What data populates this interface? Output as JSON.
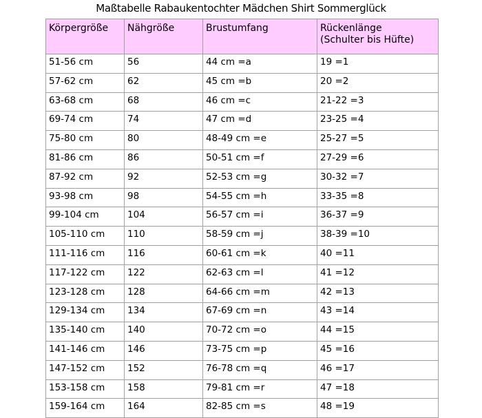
{
  "title": "Maßtabelle Rabaukentochter Mädchen Shirt Sommerglück",
  "header_color": "#ffccff",
  "headers": [
    "Körpergröße",
    "Nähgröße",
    "Brustumfang",
    "Rückenlänge\n(Schulter bis Hüfte)"
  ],
  "rows": [
    [
      "51-56 cm",
      "56",
      "44 cm =a",
      "19 =1"
    ],
    [
      "57-62 cm",
      "62",
      "45 cm =b",
      "20 =2"
    ],
    [
      "63-68 cm",
      "68",
      "46 cm =c",
      "21-22 =3"
    ],
    [
      "69-74 cm",
      "74",
      "47 cm =d",
      "23-25 =4"
    ],
    [
      "75-80 cm",
      "80",
      "48-49 cm =e",
      "25-27 =5"
    ],
    [
      "81-86 cm",
      "86",
      "50-51 cm =f",
      "27-29 =6"
    ],
    [
      "87-92 cm",
      "92",
      "52-53 cm =g",
      "30-32 =7"
    ],
    [
      "93-98 cm",
      "98",
      "54-55 cm =h",
      "33-35 =8"
    ],
    [
      "99-104 cm",
      "104",
      "56-57 cm =i",
      "36-37 =9"
    ],
    [
      "105-110 cm",
      "110",
      "58-59 cm =j",
      "38-39 =10"
    ],
    [
      "111-116 cm",
      "116",
      "60-61 cm =k",
      "40 =11"
    ],
    [
      "117-122 cm",
      "122",
      "62-63 cm =l",
      "41 =12"
    ],
    [
      "123-128 cm",
      "128",
      "64-66 cm =m",
      "42 =13"
    ],
    [
      "129-134 cm",
      "134",
      "67-69 cm =n",
      "43 =14"
    ],
    [
      "135-140 cm",
      "140",
      "70-72 cm =o",
      "44 =15"
    ],
    [
      "141-146 cm",
      "146",
      "73-75 cm =p",
      "45 =16"
    ],
    [
      "147-152 cm",
      "152",
      "76-78 cm =q",
      "46 =17"
    ],
    [
      "153-158 cm",
      "158",
      "79-81 cm =r",
      "47 =18"
    ],
    [
      "159-164 cm",
      "164",
      "82-85 cm =s",
      "48 =19"
    ]
  ]
}
